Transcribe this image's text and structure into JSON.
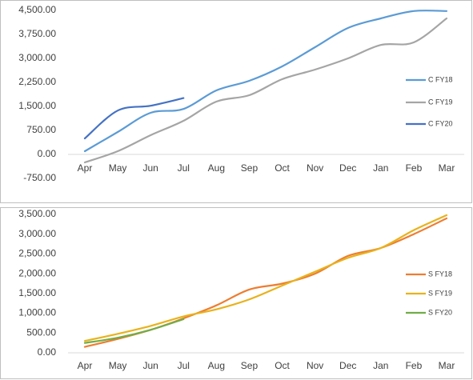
{
  "chart_data": [
    {
      "type": "line",
      "categories": [
        "Apr",
        "May",
        "Jun",
        "Jul",
        "Aug",
        "Sep",
        "Oct",
        "Nov",
        "Dec",
        "Jan",
        "Feb",
        "Mar"
      ],
      "series": [
        {
          "name": "C FY18",
          "color": "#5b9bd5",
          "values": [
            100,
            700,
            1300,
            1420,
            2000,
            2300,
            2750,
            3350,
            3950,
            4250,
            4480,
            4480
          ]
        },
        {
          "name": "C FY19",
          "color": "#a5a5a5",
          "values": [
            -250,
            100,
            600,
            1050,
            1650,
            1850,
            2350,
            2650,
            3000,
            3420,
            3500,
            4250
          ]
        },
        {
          "name": "C FY20",
          "color": "#4472c4",
          "values": [
            500,
            1370,
            1520,
            1760,
            null,
            null,
            null,
            null,
            null,
            null,
            null,
            null
          ]
        }
      ],
      "ylim": [
        -750,
        4500
      ],
      "yticks": [
        {
          "value": -750,
          "label": "-750.00"
        },
        {
          "value": 0,
          "label": "0.00"
        },
        {
          "value": 750,
          "label": "750.00"
        },
        {
          "value": 1500,
          "label": "1,500.00"
        },
        {
          "value": 2250,
          "label": "2,250.00"
        },
        {
          "value": 3000,
          "label": "3,000.00"
        },
        {
          "value": 3750,
          "label": "3,750.00"
        },
        {
          "value": 4500,
          "label": "4,500.00"
        }
      ],
      "legend": "right",
      "grid": false
    },
    {
      "type": "line",
      "categories": [
        "Apr",
        "May",
        "Jun",
        "Jul",
        "Aug",
        "Sep",
        "Oct",
        "Nov",
        "Dec",
        "Jan",
        "Feb",
        "Mar"
      ],
      "series": [
        {
          "name": "S FY18",
          "color": "#ed7d31",
          "values": [
            150,
            350,
            580,
            870,
            1200,
            1600,
            1750,
            2000,
            2450,
            2650,
            3000,
            3400
          ]
        },
        {
          "name": "S FY19",
          "color": "#e8b21c",
          "values": [
            300,
            480,
            680,
            920,
            1100,
            1350,
            1700,
            2050,
            2400,
            2650,
            3100,
            3480
          ]
        },
        {
          "name": "S FY20",
          "color": "#70ad47",
          "values": [
            250,
            380,
            580,
            850,
            null,
            null,
            null,
            null,
            null,
            null,
            null,
            null
          ]
        }
      ],
      "ylim": [
        0,
        3500
      ],
      "yticks": [
        {
          "value": 0,
          "label": "0.00"
        },
        {
          "value": 500,
          "label": "500.00"
        },
        {
          "value": 1000,
          "label": "1,000.00"
        },
        {
          "value": 1500,
          "label": "1,500.00"
        },
        {
          "value": 2000,
          "label": "2,000.00"
        },
        {
          "value": 2500,
          "label": "2,500.00"
        },
        {
          "value": 3000,
          "label": "3,000.00"
        },
        {
          "value": 3500,
          "label": "3,500.00"
        }
      ],
      "legend": "right",
      "grid": false
    }
  ]
}
